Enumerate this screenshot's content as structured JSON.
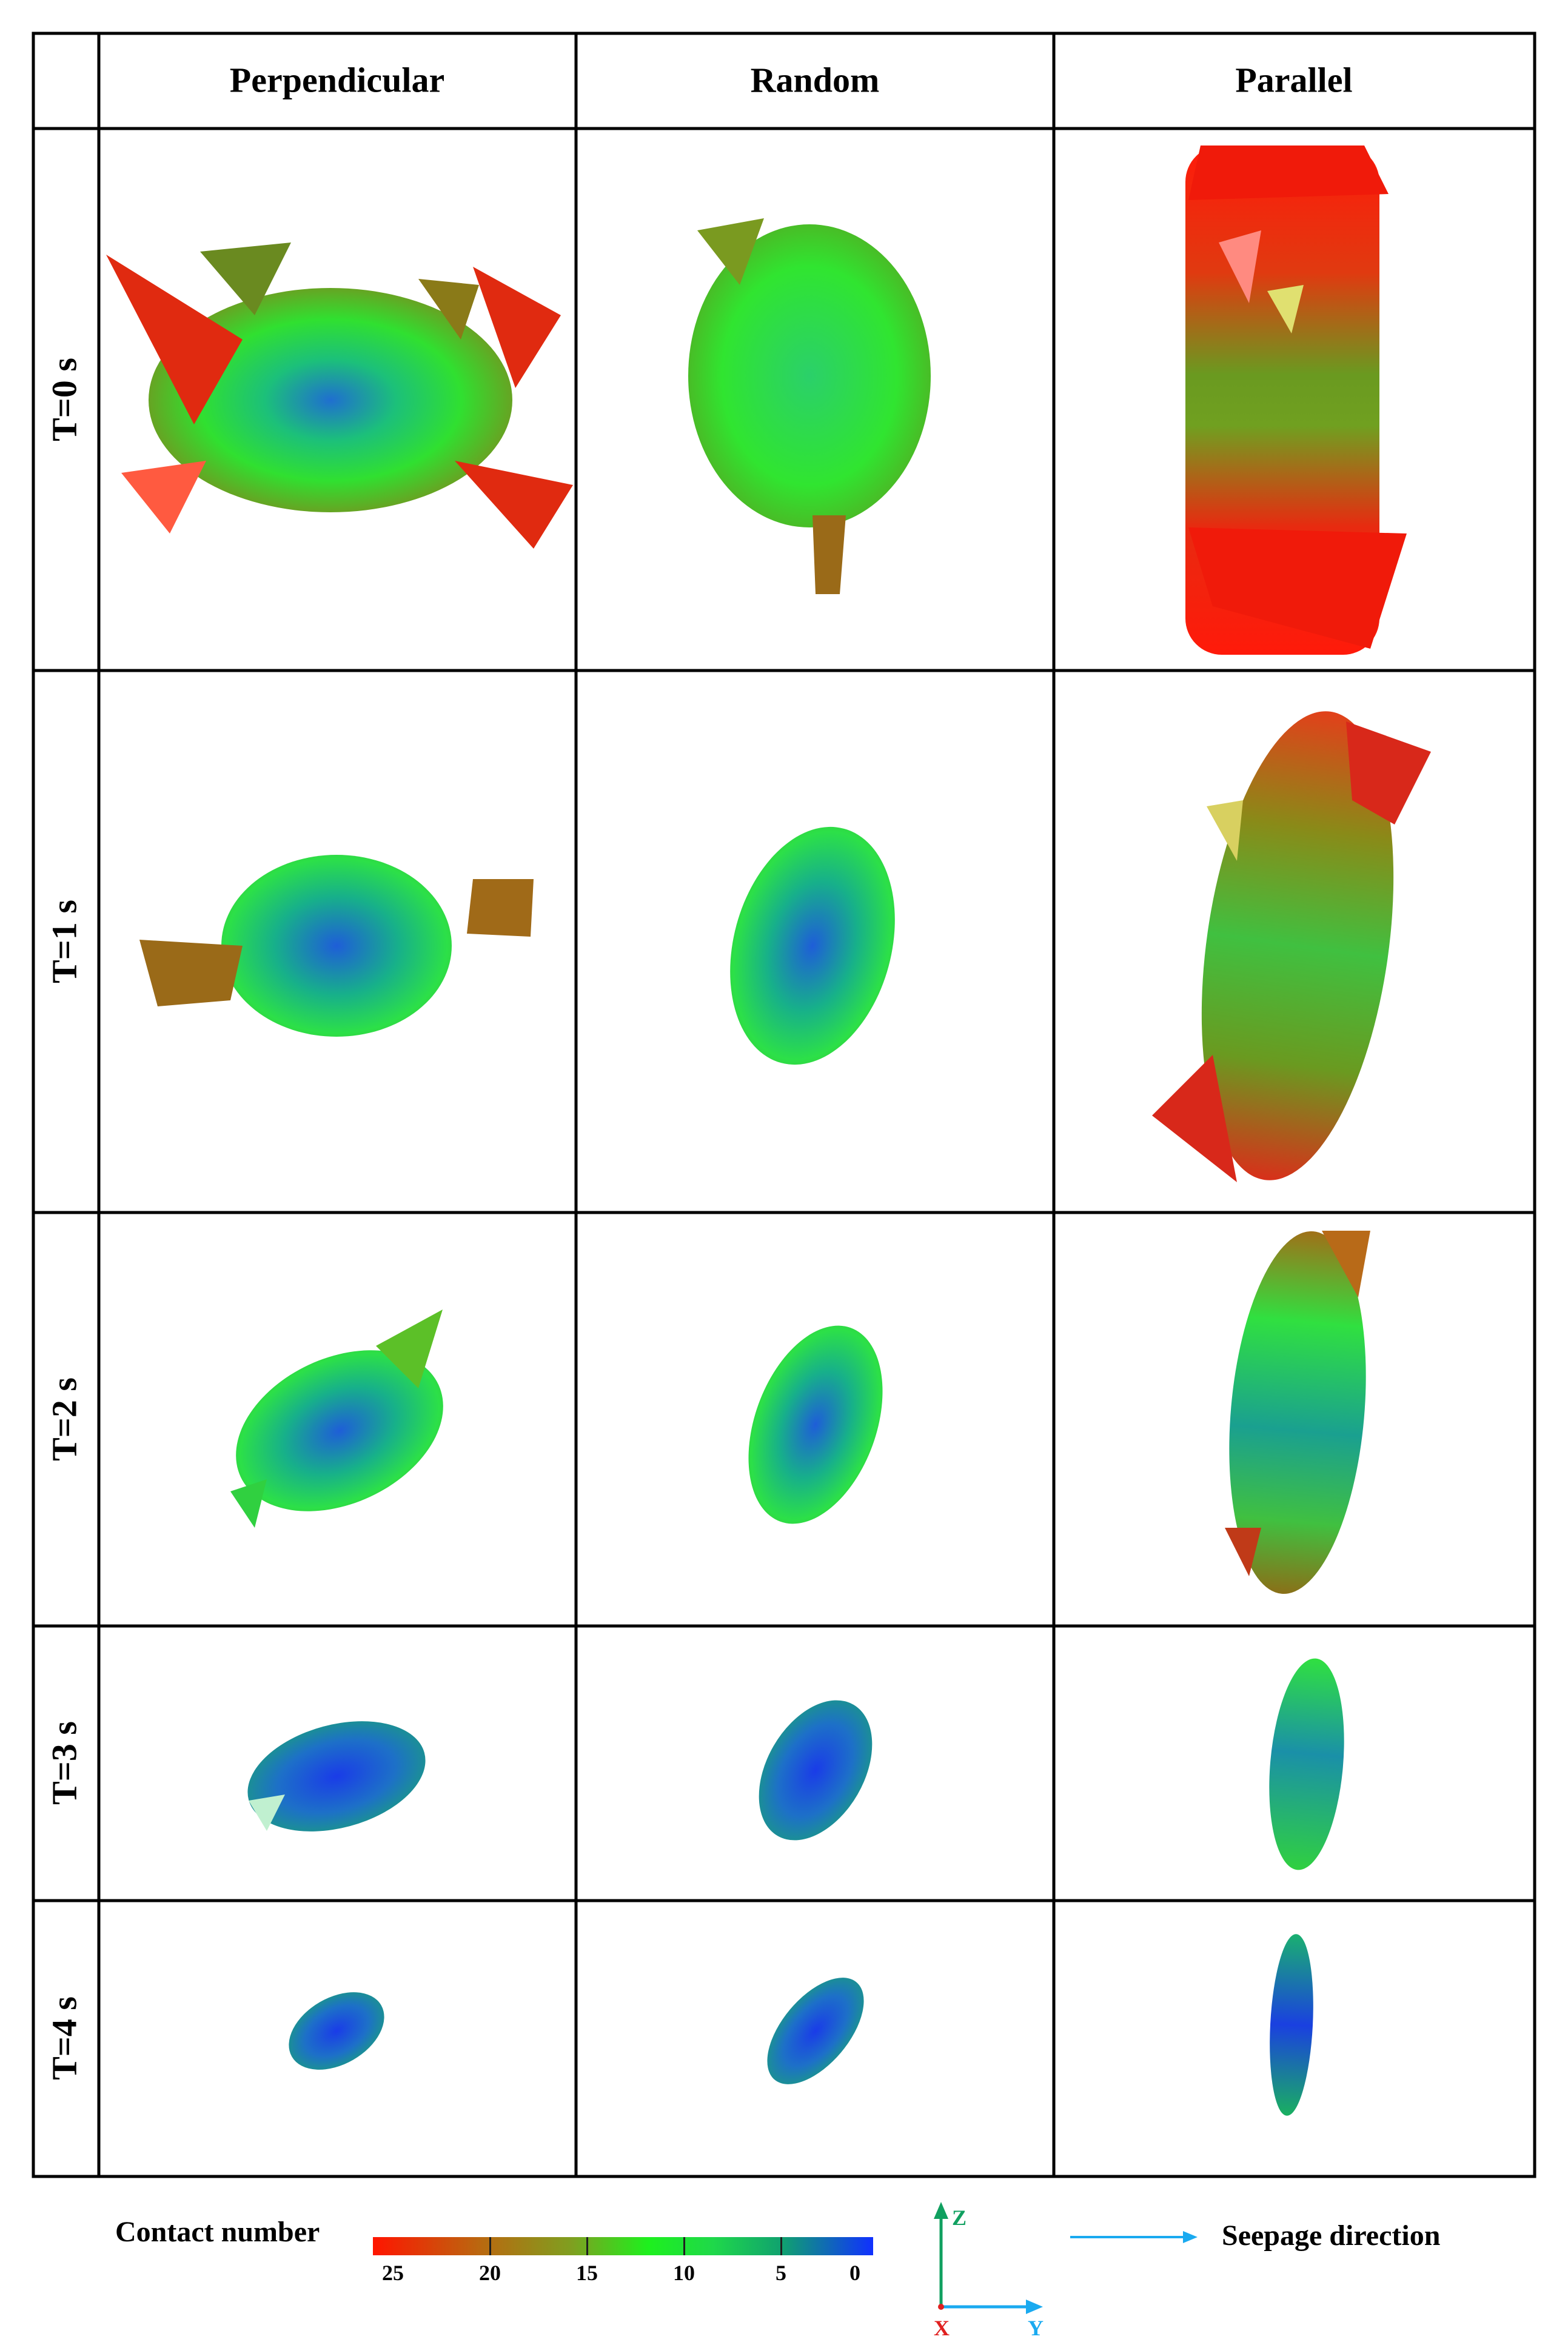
{
  "columns": [
    "Perpendicular",
    "Random",
    "Parallel"
  ],
  "rows": [
    "T=0 s",
    "T=1 s",
    "T=2 s",
    "T=3 s",
    "T=4 s"
  ],
  "legend": {
    "title": "Contact number",
    "ticks": [
      "25",
      "20",
      "15",
      "10",
      "5",
      "0"
    ],
    "colors": [
      "#ff1500",
      "#b86a10",
      "#7ea020",
      "#1ef01e",
      "#10a070",
      "#1030ff"
    ]
  },
  "axes": {
    "z": "Z",
    "x": "X",
    "y": "Y"
  },
  "seepage": {
    "label": "Seepage direction",
    "color": "#1aaaf0"
  }
}
